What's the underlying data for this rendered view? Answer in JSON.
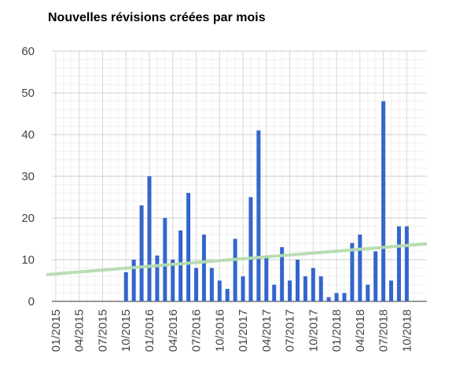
{
  "chart_data": {
    "type": "bar",
    "title": "Nouvelles révisions créées par mois",
    "xlabel": "",
    "ylabel": "",
    "ylim": [
      0,
      60
    ],
    "yticks": [
      0,
      10,
      20,
      30,
      40,
      50,
      60
    ],
    "grid": true,
    "legend": "none",
    "categories": [
      "01/2015",
      "02/2015",
      "03/2015",
      "04/2015",
      "05/2015",
      "06/2015",
      "07/2015",
      "08/2015",
      "09/2015",
      "10/2015",
      "11/2015",
      "12/2015",
      "01/2016",
      "02/2016",
      "03/2016",
      "04/2016",
      "05/2016",
      "06/2016",
      "07/2016",
      "08/2016",
      "09/2016",
      "10/2016",
      "11/2016",
      "12/2016",
      "01/2017",
      "02/2017",
      "03/2017",
      "04/2017",
      "05/2017",
      "06/2017",
      "07/2017",
      "08/2017",
      "09/2017",
      "10/2017",
      "11/2017",
      "12/2017",
      "01/2018",
      "02/2018",
      "03/2018",
      "04/2018",
      "05/2018",
      "06/2018",
      "07/2018",
      "08/2018",
      "09/2018",
      "10/2018",
      "11/2018"
    ],
    "xtick_labels": [
      "01/2015",
      "04/2015",
      "07/2015",
      "10/2015",
      "01/2016",
      "04/2016",
      "07/2016",
      "10/2016",
      "01/2017",
      "04/2017",
      "07/2017",
      "10/2017",
      "01/2018",
      "04/2018",
      "07/2018",
      "10/2018"
    ],
    "series": [
      {
        "values": [
          0,
          0,
          0,
          0,
          0,
          0,
          0,
          0,
          0,
          7,
          10,
          23,
          30,
          11,
          20,
          10,
          17,
          26,
          8,
          16,
          8,
          5,
          3,
          15,
          6,
          25,
          41,
          11,
          4,
          13,
          5,
          10,
          6,
          8,
          6,
          1,
          2,
          2,
          14,
          16,
          4,
          12,
          48,
          5,
          18,
          18,
          0
        ],
        "color": "#3366cc"
      }
    ],
    "trendline": {
      "start": 6.7,
      "end": 13.8,
      "color": "#b6dcb0"
    }
  }
}
